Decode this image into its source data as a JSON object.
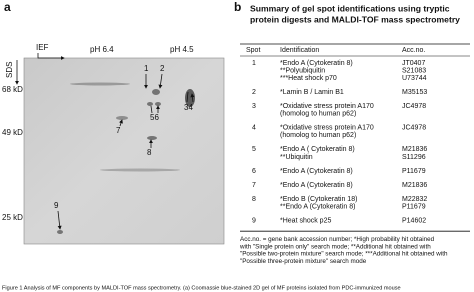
{
  "panel_a": {
    "letter": "a",
    "ief": "IEF",
    "sds": "SDS",
    "ph_left": "pH 6.4",
    "ph_right": "pH 4.5",
    "markers": [
      "68 kD",
      "49 kD",
      "25 kD"
    ],
    "spot_labels": [
      "1",
      "2",
      "34",
      "56",
      "7",
      "8",
      "9"
    ]
  },
  "panel_b": {
    "letter": "b",
    "title": [
      "Summary of gel spot identifications using tryptic",
      "protein digests and MALDI-TOF mass spectrometry"
    ],
    "header": [
      "Spot",
      "Identification",
      "Acc.no."
    ],
    "rows": [
      {
        "spot": "1",
        "entries": [
          {
            "identification": [
              "*Endo A (Cytokeratin 8)"
            ],
            "acc": "JT0407"
          },
          {
            "identification": [
              "**Polyubiquitin"
            ],
            "acc": "S21083"
          },
          {
            "identification": [
              "***Heat shock p70"
            ],
            "acc": "U73744"
          }
        ]
      },
      {
        "spot": "2",
        "entries": [
          {
            "identification": [
              "*Lamin B / Lamin B1"
            ],
            "acc": "M35153"
          }
        ]
      },
      {
        "spot": "3",
        "entries": [
          {
            "identification": [
              "*Oxidative stress protein A170",
              "(homolog to human p62)"
            ],
            "acc": "JC4978"
          }
        ]
      },
      {
        "spot": "4",
        "entries": [
          {
            "identification": [
              "*Oxidative stress protein A170",
              "(homolog to human p62)"
            ],
            "acc": "JC4978"
          }
        ]
      },
      {
        "spot": "5",
        "entries": [
          {
            "identification": [
              "*Endo A ( Cytokeratin 8)"
            ],
            "acc": "M21836"
          },
          {
            "identification": [
              "**Ubiquitin"
            ],
            "acc": "S11296"
          }
        ]
      },
      {
        "spot": "6",
        "entries": [
          {
            "identification": [
              "*Endo A (Cytokeratin 8)"
            ],
            "acc": "P11679"
          }
        ]
      },
      {
        "spot": "7",
        "entries": [
          {
            "identification": [
              "*Endo A (Cytokeratin 8)"
            ],
            "acc": "M21836"
          }
        ]
      },
      {
        "spot": "8",
        "entries": [
          {
            "identification": [
              "*Endo B (Cytokeratin 18)"
            ],
            "acc": "M22832"
          },
          {
            "identification": [
              "**Endo A (Cytokeratin 8)"
            ],
            "acc": "P11679"
          }
        ]
      },
      {
        "spot": "9",
        "entries": [
          {
            "identification": [
              "*Heat shock p25"
            ],
            "acc": "P14602"
          }
        ]
      }
    ],
    "footnote": [
      "Acc.no. = gene bank accession number; *High probability hit obtained",
      "with \"Single protein only\" search mode; **Additional hit obtained with",
      "\"Possible two-protein mixture\" search mode; ***Additional hit obtained with",
      "\"Possible three-protein mixture\" search mode"
    ]
  },
  "caption": "Figure 1  Analysis of MF components by MALDI-TOF mass spectrometry. (a) Coomassie blue-stained 2D gel of MF proteins isolated from PDC-immunized mouse"
}
